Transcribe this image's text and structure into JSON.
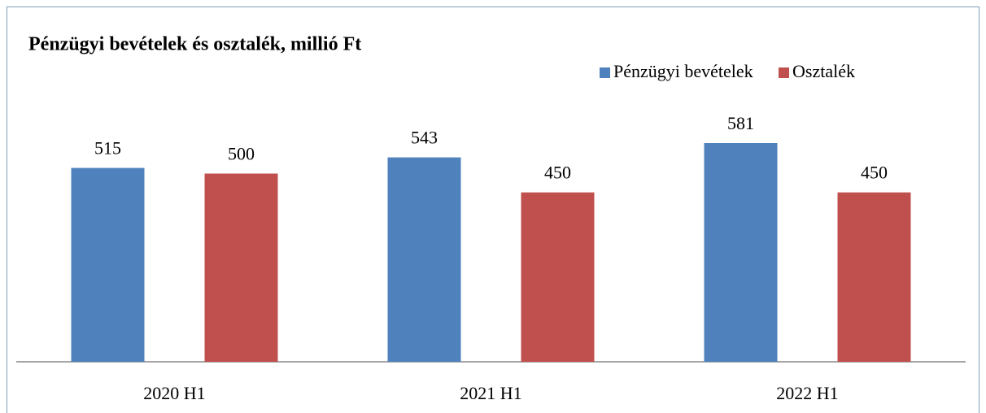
{
  "chart_data": {
    "type": "bar",
    "title": "Pénzügyi bevételek és osztalék, millió Ft",
    "categories": [
      "2020 H1",
      "2021 H1",
      "2022 H1"
    ],
    "series": [
      {
        "name": "Pénzügyi bevételek",
        "color": "#4f81bd",
        "values": [
          515,
          543,
          581
        ]
      },
      {
        "name": "Osztalék",
        "color": "#c0504d",
        "values": [
          500,
          450,
          450
        ]
      }
    ],
    "legend": "top-right"
  }
}
